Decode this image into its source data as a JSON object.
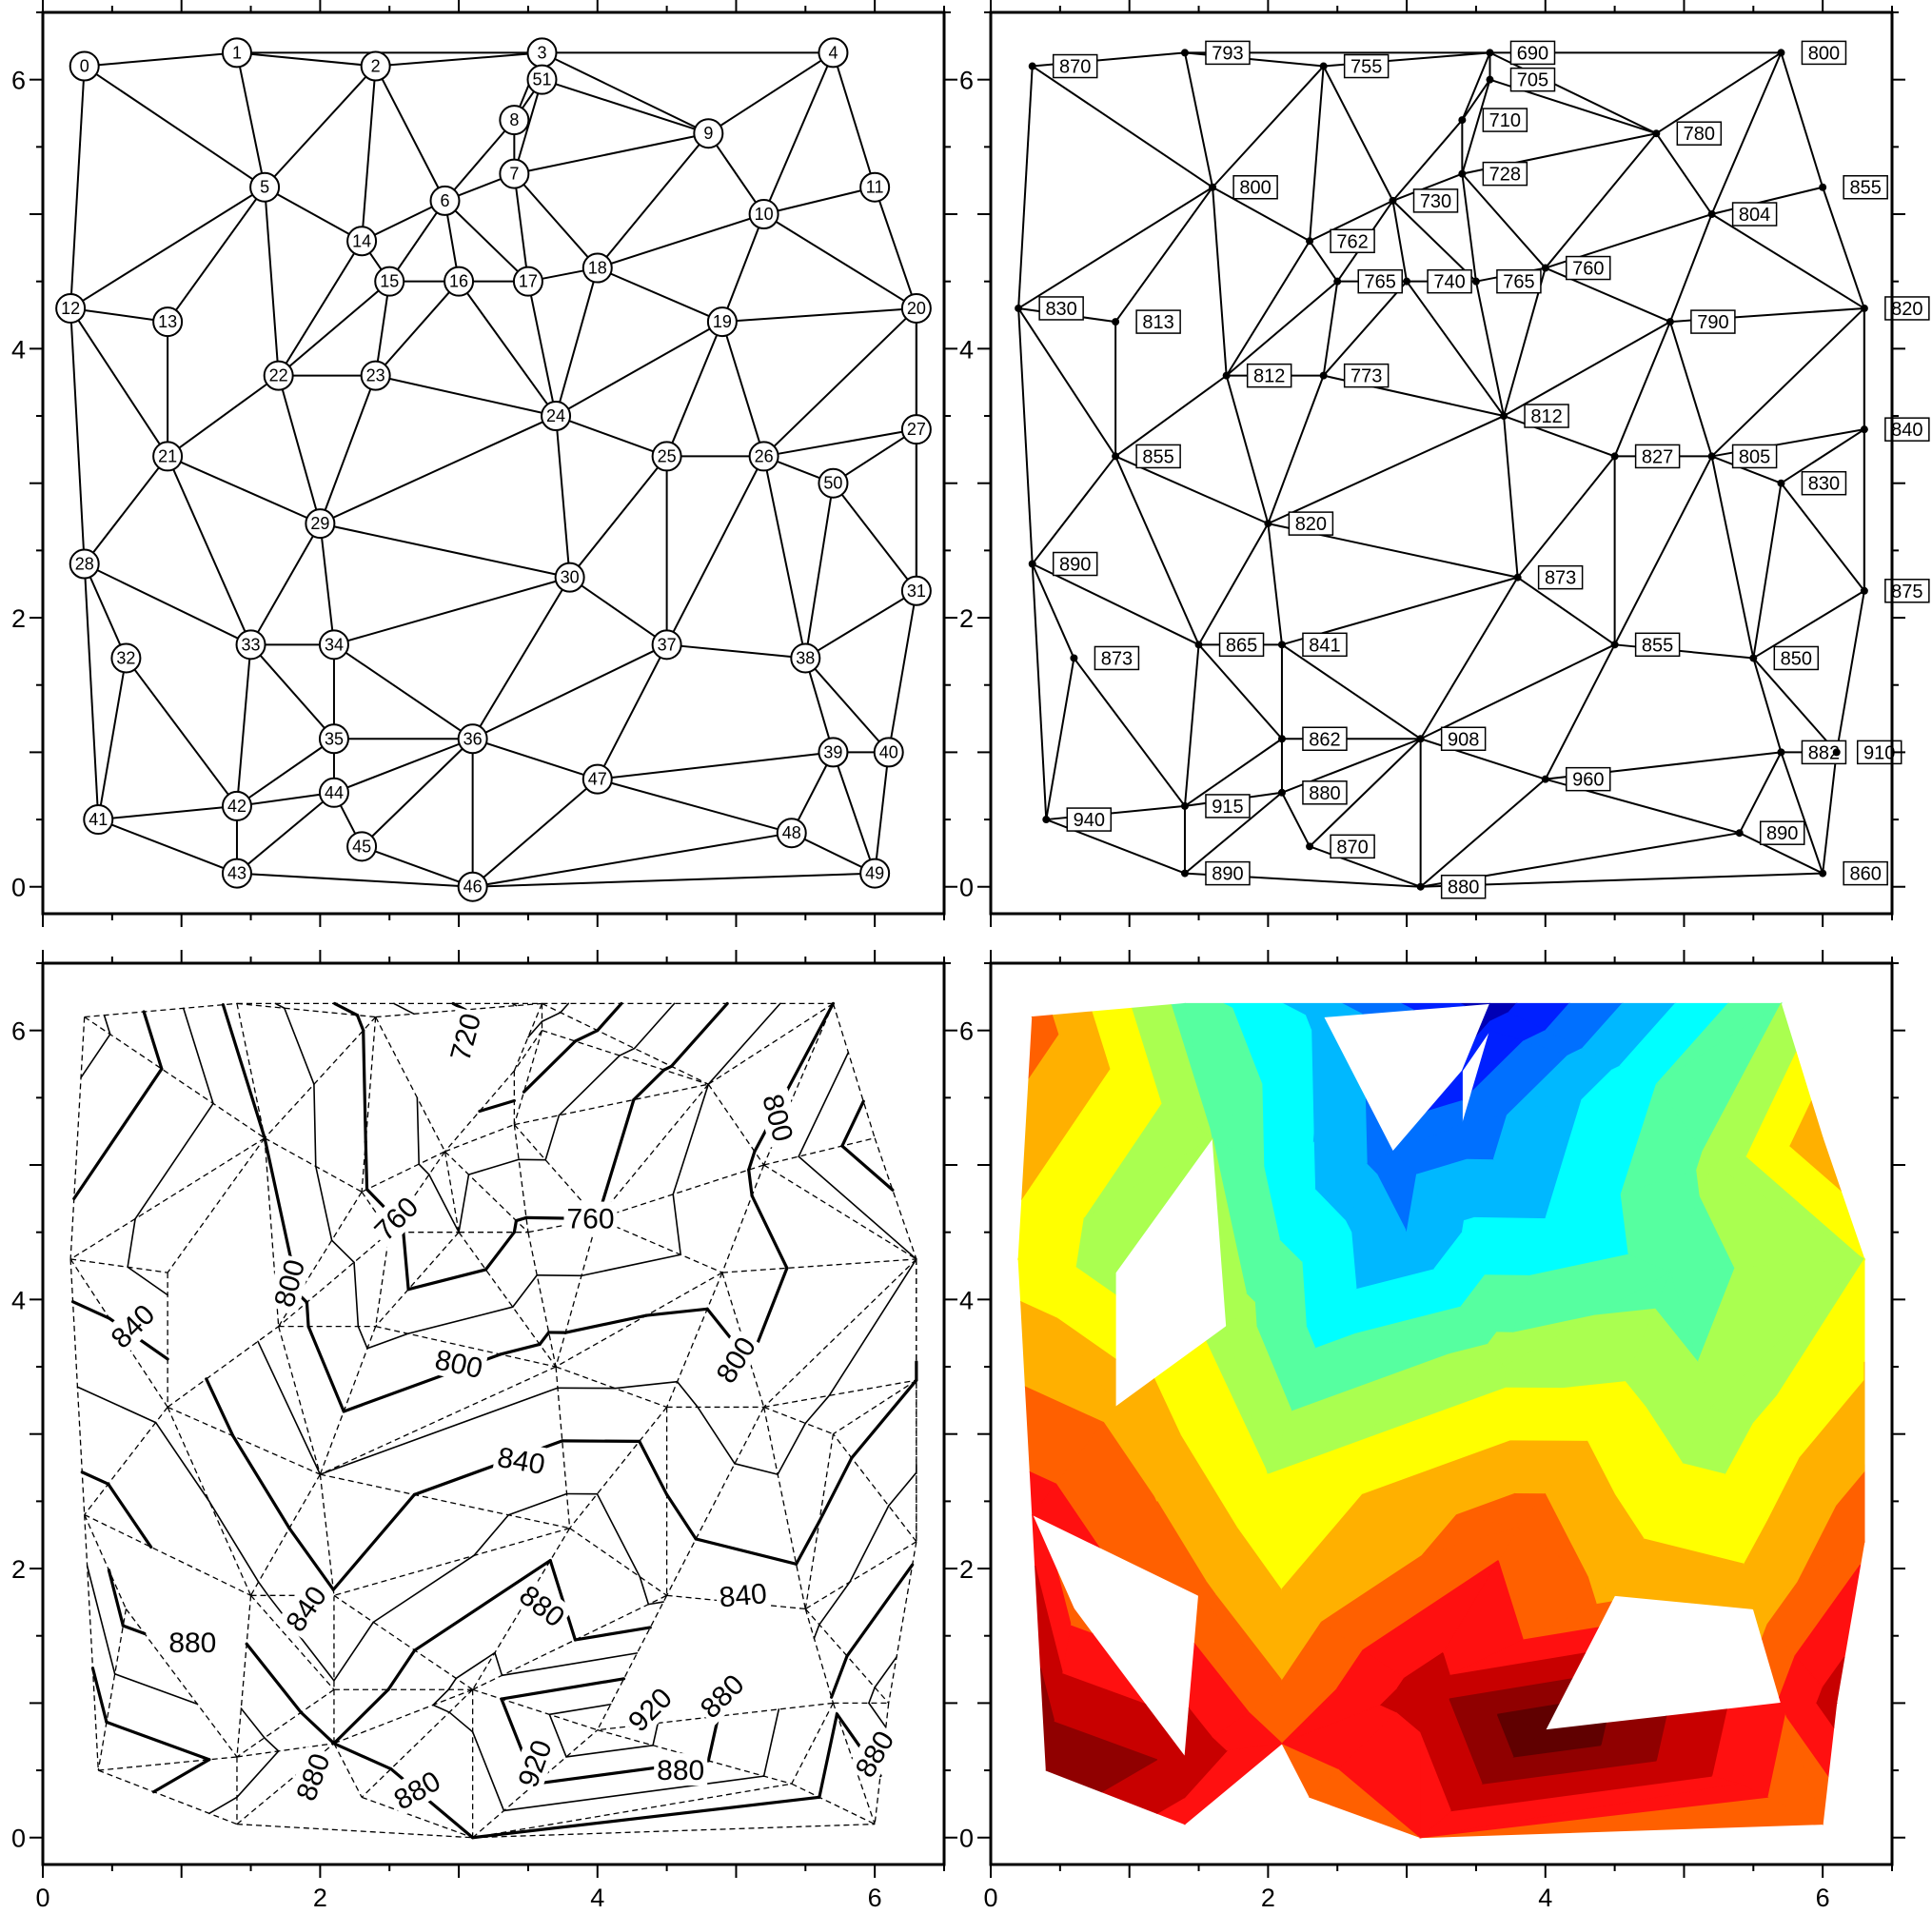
{
  "figure_title": "",
  "chart_data": [
    {
      "panel": "top-left",
      "type": "scatter",
      "title": "",
      "description_visible": "Delaunay triangulation with node index labels",
      "xlabel": "",
      "ylabel": "",
      "xlim": [
        0,
        6.5
      ],
      "ylim": [
        -0.2,
        6.5
      ],
      "x_ticks": [
        "0",
        "2",
        "4",
        "6"
      ],
      "y_ticks": [
        "0",
        "2",
        "4",
        "6"
      ],
      "grid": false,
      "legend": "none",
      "points_ref": "points"
    },
    {
      "panel": "top-right",
      "type": "scatter",
      "title": "",
      "xlabel": "",
      "ylabel": "",
      "xlim": [
        0,
        6.5
      ],
      "ylim": [
        -0.2,
        6.5
      ],
      "x_ticks": [
        "0",
        "2",
        "4",
        "6"
      ],
      "y_ticks": [
        "0",
        "2",
        "4",
        "6"
      ],
      "grid": false,
      "legend": "none",
      "points_ref": "points"
    },
    {
      "panel": "bottom-left",
      "type": "line",
      "title": "",
      "xlabel": "",
      "ylabel": "",
      "xlim": [
        0,
        6.5
      ],
      "ylim": [
        -0.2,
        6.5
      ],
      "x_ticks": [
        "0",
        "2",
        "4",
        "6"
      ],
      "y_ticks": [
        "0",
        "2",
        "4",
        "6"
      ],
      "contour_interval": 20,
      "annotated_interval": 40,
      "contour_labels": [
        {
          "text": "720",
          "x": 3.05,
          "y": 5.95,
          "rot": 75
        },
        {
          "text": "760",
          "x": 2.55,
          "y": 4.6,
          "rot": 45
        },
        {
          "text": "760",
          "x": 3.95,
          "y": 4.6,
          "rot": 0
        },
        {
          "text": "800",
          "x": 5.3,
          "y": 5.35,
          "rot": -75
        },
        {
          "text": "800",
          "x": 1.78,
          "y": 4.12,
          "rot": 75
        },
        {
          "text": "800",
          "x": 3.0,
          "y": 3.52,
          "rot": -12
        },
        {
          "text": "800",
          "x": 5.0,
          "y": 3.55,
          "rot": 58
        },
        {
          "text": "840",
          "x": 0.65,
          "y": 3.8,
          "rot": 45
        },
        {
          "text": "840",
          "x": 3.45,
          "y": 2.8,
          "rot": -10
        },
        {
          "text": "840",
          "x": 1.9,
          "y": 1.7,
          "rot": 55
        },
        {
          "text": "840",
          "x": 5.05,
          "y": 1.8,
          "rot": 5
        },
        {
          "text": "880",
          "x": 1.08,
          "y": 1.45,
          "rot": 0
        },
        {
          "text": "880",
          "x": 3.6,
          "y": 1.72,
          "rot": -38
        },
        {
          "text": "880",
          "x": 4.9,
          "y": 1.05,
          "rot": 45
        },
        {
          "text": "920",
          "x": 4.38,
          "y": 0.95,
          "rot": 45
        },
        {
          "text": "920",
          "x": 3.55,
          "y": 0.55,
          "rot": 70
        },
        {
          "text": "880",
          "x": 6.0,
          "y": 0.62,
          "rot": 60
        },
        {
          "text": "880",
          "x": 1.95,
          "y": 0.45,
          "rot": 70
        },
        {
          "text": "880",
          "x": 2.7,
          "y": 0.35,
          "rot": 30
        },
        {
          "text": "880",
          "x": 4.6,
          "y": 0.5,
          "rot": 0
        }
      ],
      "points_ref": "points"
    },
    {
      "panel": "bottom-right",
      "type": "heatmap",
      "title": "",
      "xlabel": "",
      "ylabel": "",
      "xlim": [
        0,
        6.5
      ],
      "ylim": [
        -0.2,
        6.5
      ],
      "x_ticks": [
        "0",
        "2",
        "4",
        "6"
      ],
      "y_ticks": [
        "0",
        "2",
        "4",
        "6"
      ],
      "levels": [
        680,
        700,
        720,
        740,
        760,
        780,
        800,
        820,
        840,
        860,
        880,
        900,
        920,
        940,
        960
      ],
      "colormap": [
        "#0000b5",
        "#0020ff",
        "#0070ff",
        "#00b8ff",
        "#00ffff",
        "#56ffa0",
        "#aaff50",
        "#ffff00",
        "#ffb000",
        "#ff6000",
        "#ff1010",
        "#c80000",
        "#900000",
        "#600000"
      ],
      "points_ref": "points"
    }
  ],
  "points": [
    {
      "id": 0,
      "x": 0.3,
      "y": 6.1,
      "z": 870
    },
    {
      "id": 1,
      "x": 1.4,
      "y": 6.2,
      "z": 793
    },
    {
      "id": 2,
      "x": 2.4,
      "y": 6.1,
      "z": 755
    },
    {
      "id": 3,
      "x": 3.6,
      "y": 6.2,
      "z": 690
    },
    {
      "id": 4,
      "x": 5.7,
      "y": 6.2,
      "z": 800
    },
    {
      "id": 5,
      "x": 1.6,
      "y": 5.2,
      "z": 800
    },
    {
      "id": 6,
      "x": 2.9,
      "y": 5.1,
      "z": 730
    },
    {
      "id": 7,
      "x": 3.4,
      "y": 5.3,
      "z": 728
    },
    {
      "id": 8,
      "x": 3.4,
      "y": 5.7,
      "z": 710
    },
    {
      "id": 9,
      "x": 4.8,
      "y": 5.6,
      "z": 780
    },
    {
      "id": 10,
      "x": 5.2,
      "y": 5.0,
      "z": 804
    },
    {
      "id": 11,
      "x": 6.0,
      "y": 5.2,
      "z": 855
    },
    {
      "id": 12,
      "x": 0.2,
      "y": 4.3,
      "z": 830
    },
    {
      "id": 13,
      "x": 0.9,
      "y": 4.2,
      "z": 813
    },
    {
      "id": 14,
      "x": 2.3,
      "y": 4.8,
      "z": 762
    },
    {
      "id": 15,
      "x": 2.5,
      "y": 4.5,
      "z": 765
    },
    {
      "id": 16,
      "x": 3.0,
      "y": 4.5,
      "z": 740
    },
    {
      "id": 17,
      "x": 3.5,
      "y": 4.5,
      "z": 765
    },
    {
      "id": 18,
      "x": 4.0,
      "y": 4.6,
      "z": 760
    },
    {
      "id": 19,
      "x": 4.9,
      "y": 4.2,
      "z": 790
    },
    {
      "id": 20,
      "x": 6.3,
      "y": 4.3,
      "z": 820
    },
    {
      "id": 21,
      "x": 0.9,
      "y": 3.2,
      "z": 855
    },
    {
      "id": 22,
      "x": 1.7,
      "y": 3.8,
      "z": 812
    },
    {
      "id": 23,
      "x": 2.4,
      "y": 3.8,
      "z": 773
    },
    {
      "id": 24,
      "x": 3.7,
      "y": 3.5,
      "z": 812
    },
    {
      "id": 25,
      "x": 4.5,
      "y": 3.2,
      "z": 827
    },
    {
      "id": 26,
      "x": 5.2,
      "y": 3.2,
      "z": 805
    },
    {
      "id": 27,
      "x": 6.3,
      "y": 3.4,
      "z": 840
    },
    {
      "id": 28,
      "x": 0.3,
      "y": 2.4,
      "z": 890
    },
    {
      "id": 29,
      "x": 2.0,
      "y": 2.7,
      "z": 820
    },
    {
      "id": 30,
      "x": 3.8,
      "y": 2.3,
      "z": 873
    },
    {
      "id": 31,
      "x": 6.3,
      "y": 2.2,
      "z": 875
    },
    {
      "id": 32,
      "x": 0.6,
      "y": 1.7,
      "z": 873
    },
    {
      "id": 33,
      "x": 1.5,
      "y": 1.8,
      "z": 865
    },
    {
      "id": 34,
      "x": 2.1,
      "y": 1.8,
      "z": 841
    },
    {
      "id": 35,
      "x": 2.1,
      "y": 1.1,
      "z": 862
    },
    {
      "id": 36,
      "x": 3.1,
      "y": 1.1,
      "z": 908
    },
    {
      "id": 37,
      "x": 4.5,
      "y": 1.8,
      "z": 855
    },
    {
      "id": 38,
      "x": 5.5,
      "y": 1.7,
      "z": 850
    },
    {
      "id": 39,
      "x": 5.7,
      "y": 1.0,
      "z": 882
    },
    {
      "id": 40,
      "x": 6.1,
      "y": 1.0,
      "z": 910
    },
    {
      "id": 41,
      "x": 0.4,
      "y": 0.5,
      "z": 940
    },
    {
      "id": 42,
      "x": 1.4,
      "y": 0.6,
      "z": 915
    },
    {
      "id": 43,
      "x": 1.4,
      "y": 0.1,
      "z": 890
    },
    {
      "id": 44,
      "x": 2.1,
      "y": 0.7,
      "z": 880
    },
    {
      "id": 45,
      "x": 2.3,
      "y": 0.3,
      "z": 870
    },
    {
      "id": 46,
      "x": 3.1,
      "y": 0.0,
      "z": 880
    },
    {
      "id": 47,
      "x": 4.0,
      "y": 0.8,
      "z": 960
    },
    {
      "id": 48,
      "x": 5.4,
      "y": 0.4,
      "z": 890
    },
    {
      "id": 49,
      "x": 6.0,
      "y": 0.1,
      "z": 860
    },
    {
      "id": 50,
      "x": 5.7,
      "y": 3.0,
      "z": 830
    },
    {
      "id": 51,
      "x": 3.6,
      "y": 6.0,
      "z": 705
    }
  ],
  "edges": [
    [
      0,
      1
    ],
    [
      0,
      5
    ],
    [
      0,
      12
    ],
    [
      1,
      2
    ],
    [
      1,
      3
    ],
    [
      1,
      5
    ],
    [
      2,
      3
    ],
    [
      2,
      5
    ],
    [
      2,
      6
    ],
    [
      2,
      14
    ],
    [
      3,
      4
    ],
    [
      3,
      51
    ],
    [
      3,
      8
    ],
    [
      3,
      9
    ],
    [
      4,
      9
    ],
    [
      4,
      10
    ],
    [
      4,
      11
    ],
    [
      51,
      8
    ],
    [
      51,
      7
    ],
    [
      51,
      9
    ],
    [
      8,
      7
    ],
    [
      8,
      6
    ],
    [
      5,
      12
    ],
    [
      5,
      13
    ],
    [
      5,
      22
    ],
    [
      5,
      14
    ],
    [
      6,
      14
    ],
    [
      6,
      7
    ],
    [
      6,
      15
    ],
    [
      6,
      16
    ],
    [
      6,
      17
    ],
    [
      7,
      9
    ],
    [
      7,
      17
    ],
    [
      7,
      18
    ],
    [
      9,
      18
    ],
    [
      9,
      10
    ],
    [
      10,
      11
    ],
    [
      10,
      18
    ],
    [
      10,
      19
    ],
    [
      10,
      20
    ],
    [
      11,
      20
    ],
    [
      12,
      13
    ],
    [
      12,
      21
    ],
    [
      12,
      28
    ],
    [
      13,
      21
    ],
    [
      14,
      22
    ],
    [
      14,
      15
    ],
    [
      15,
      16
    ],
    [
      15,
      22
    ],
    [
      15,
      23
    ],
    [
      16,
      17
    ],
    [
      16,
      23
    ],
    [
      16,
      24
    ],
    [
      17,
      18
    ],
    [
      17,
      24
    ],
    [
      18,
      19
    ],
    [
      18,
      24
    ],
    [
      19,
      20
    ],
    [
      19,
      24
    ],
    [
      19,
      25
    ],
    [
      19,
      26
    ],
    [
      20,
      26
    ],
    [
      20,
      27
    ],
    [
      20,
      31
    ],
    [
      21,
      22
    ],
    [
      21,
      28
    ],
    [
      21,
      29
    ],
    [
      21,
      33
    ],
    [
      22,
      23
    ],
    [
      22,
      29
    ],
    [
      23,
      24
    ],
    [
      23,
      29
    ],
    [
      24,
      25
    ],
    [
      24,
      29
    ],
    [
      24,
      30
    ],
    [
      25,
      26
    ],
    [
      25,
      30
    ],
    [
      25,
      37
    ],
    [
      26,
      27
    ],
    [
      26,
      50
    ],
    [
      26,
      37
    ],
    [
      26,
      38
    ],
    [
      27,
      50
    ],
    [
      27,
      31
    ],
    [
      28,
      32
    ],
    [
      28,
      33
    ],
    [
      28,
      41
    ],
    [
      29,
      30
    ],
    [
      29,
      33
    ],
    [
      29,
      34
    ],
    [
      30,
      37
    ],
    [
      30,
      36
    ],
    [
      30,
      34
    ],
    [
      31,
      50
    ],
    [
      31,
      38
    ],
    [
      31,
      40
    ],
    [
      32,
      41
    ],
    [
      32,
      42
    ],
    [
      33,
      34
    ],
    [
      33,
      35
    ],
    [
      33,
      42
    ],
    [
      34,
      35
    ],
    [
      34,
      36
    ],
    [
      35,
      36
    ],
    [
      35,
      42
    ],
    [
      35,
      44
    ],
    [
      36,
      44
    ],
    [
      36,
      45
    ],
    [
      36,
      46
    ],
    [
      36,
      47
    ],
    [
      36,
      37
    ],
    [
      37,
      38
    ],
    [
      37,
      47
    ],
    [
      38,
      50
    ],
    [
      38,
      39
    ],
    [
      38,
      40
    ],
    [
      39,
      40
    ],
    [
      39,
      47
    ],
    [
      39,
      48
    ],
    [
      39,
      49
    ],
    [
      40,
      49
    ],
    [
      41,
      42
    ],
    [
      41,
      43
    ],
    [
      42,
      43
    ],
    [
      42,
      44
    ],
    [
      43,
      44
    ],
    [
      43,
      46
    ],
    [
      44,
      45
    ],
    [
      45,
      46
    ],
    [
      46,
      47
    ],
    [
      46,
      48
    ],
    [
      46,
      49
    ],
    [
      47,
      48
    ],
    [
      48,
      49
    ]
  ],
  "labels": {
    "x_tick_0": "0",
    "x_tick_2": "2",
    "x_tick_4": "4",
    "x_tick_6": "6",
    "y_tick_0": "0",
    "y_tick_2": "2",
    "y_tick_4": "4",
    "y_tick_6": "6"
  }
}
